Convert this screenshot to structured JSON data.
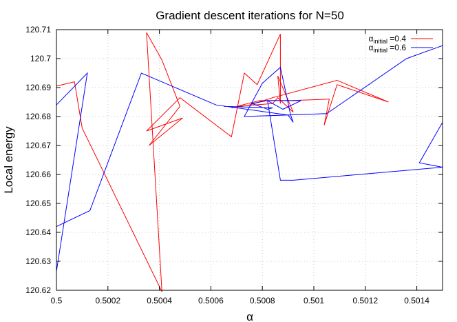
{
  "chart_data": {
    "type": "line",
    "title": "Gradient descent iterations for N=50",
    "xlabel": "α",
    "ylabel": "Local energy",
    "xlim": [
      0.5,
      0.5015
    ],
    "ylim": [
      120.62,
      120.71
    ],
    "xticks": [
      "0.5",
      "0.5002",
      "0.5004",
      "0.5006",
      "0.5008",
      "0.501",
      "0.5012",
      "0.5014"
    ],
    "xtick_values": [
      0.5,
      0.5002,
      0.5004,
      0.5006,
      0.5008,
      0.501,
      0.5012,
      0.5014
    ],
    "yticks": [
      "120.62",
      "120.63",
      "120.64",
      "120.65",
      "120.66",
      "120.67",
      "120.68",
      "120.69",
      "120.7",
      "120.71"
    ],
    "ytick_values": [
      120.62,
      120.63,
      120.64,
      120.65,
      120.66,
      120.67,
      120.68,
      120.69,
      120.7,
      120.71
    ],
    "grid": true,
    "legend_position": "top-right",
    "series": [
      {
        "name": "αinitial =0.4",
        "legend_base": "α",
        "legend_sub": "initial",
        "legend_tail": " =0.4",
        "color": "#ff0000",
        "x": [
          0.5,
          0.50007,
          0.5001,
          0.50041,
          0.50035,
          0.50041,
          0.50048,
          0.50036,
          0.50049,
          0.50035,
          0.50048,
          0.50068,
          0.50073,
          0.50078,
          0.50087,
          0.50087,
          0.50086,
          0.50092,
          0.50086,
          0.50084,
          0.5007,
          0.50079,
          0.50091,
          0.50106,
          0.50104,
          0.50109,
          0.50129,
          0.50109,
          0.50084,
          0.50075,
          0.50068
        ],
        "y": [
          120.6905,
          120.692,
          120.676,
          120.6195,
          120.709,
          120.6995,
          120.6835,
          120.67,
          120.6795,
          120.675,
          120.6865,
          120.673,
          120.695,
          120.691,
          120.7085,
          120.6845,
          120.694,
          120.6815,
          120.6865,
          120.6845,
          120.6835,
          120.6855,
          120.6855,
          120.686,
          120.677,
          120.691,
          120.685,
          120.6925,
          120.6865,
          120.684,
          120.683
        ]
      },
      {
        "name": "αinitial =0.6",
        "legend_base": "α",
        "legend_sub": "initial",
        "legend_tail": " =0.6",
        "color": "#0000ff",
        "x": [
          0.5,
          0.50012,
          0.5,
          0.5,
          0.50013,
          0.50033,
          0.50062,
          0.5009,
          0.50092,
          0.50091,
          0.50087,
          0.5008,
          0.50073,
          0.50105,
          0.50136,
          0.5015,
          0.5015,
          0.50141,
          0.5015,
          0.5015,
          0.50092,
          0.50087,
          0.50082,
          0.50088,
          0.50095,
          0.50082,
          0.50076,
          0.50082,
          0.50084,
          0.50065
        ],
        "y": [
          120.684,
          120.695,
          120.6265,
          120.642,
          120.6475,
          120.695,
          120.684,
          120.6805,
          120.678,
          120.6805,
          120.697,
          120.6915,
          120.68,
          120.681,
          120.7,
          120.7045,
          120.678,
          120.664,
          120.6625,
          120.6625,
          120.658,
          120.658,
          120.6855,
          120.6825,
          120.6855,
          120.6855,
          120.6845,
          120.6825,
          120.683,
          120.6835
        ]
      }
    ]
  }
}
